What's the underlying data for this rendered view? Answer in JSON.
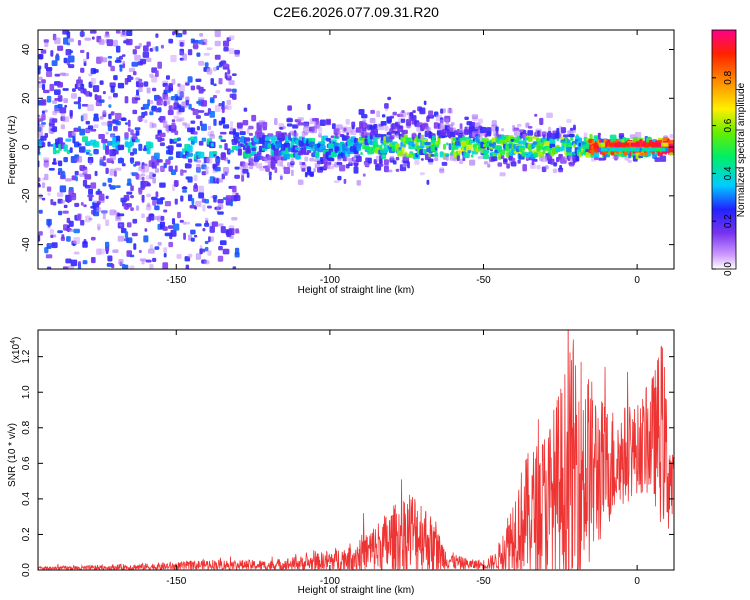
{
  "title": "C2E6.2026.077.09.31.R20",
  "chart_data": [
    {
      "type": "heatmap",
      "xlabel": "Height of straight line (km)",
      "ylabel": "Frequency (Hz)",
      "xlim": [
        -195,
        12
      ],
      "ylim": [
        -50,
        48
      ],
      "xticks": [
        -150,
        -100,
        -50,
        0
      ],
      "yticks": [
        -40,
        -20,
        0,
        20,
        40
      ],
      "colorbar": {
        "label": "Normalized spectral amplitude",
        "range": [
          0,
          1
        ],
        "ticks": [
          0.0,
          0.2,
          0.4,
          0.6,
          0.8
        ]
      }
    },
    {
      "type": "line",
      "xlabel": "Height of straight line (km)",
      "ylabel": "SNR (10 * v/v)",
      "yscale_label": "(x10",
      "yscale_exp": "4",
      "xlim": [
        -195,
        12
      ],
      "ylim": [
        0,
        1.35
      ],
      "xticks": [
        -150,
        -100,
        -50,
        0
      ],
      "yticks": [
        0.0,
        0.2,
        0.4,
        0.6,
        0.8,
        1.0,
        1.2
      ],
      "color": "#ee3333",
      "envelope": {
        "x": [
          -195,
          -180,
          -165,
          -150,
          -140,
          -120,
          -105,
          -95,
          -88,
          -82,
          -78,
          -74,
          -70,
          -66,
          -62,
          -58,
          -54,
          -50,
          -46,
          -43,
          -40,
          -36,
          -32,
          -28,
          -25,
          -22,
          -20,
          -17,
          -14,
          -10,
          -6,
          -3,
          0,
          3,
          6,
          8,
          9,
          10,
          11,
          12
        ],
        "y": [
          0.01,
          0.01,
          0.015,
          0.02,
          0.03,
          0.025,
          0.04,
          0.06,
          0.1,
          0.14,
          0.17,
          0.22,
          0.2,
          0.12,
          0.06,
          0.04,
          0.03,
          0.03,
          0.05,
          0.12,
          0.22,
          0.3,
          0.34,
          0.38,
          0.45,
          0.52,
          0.6,
          0.58,
          0.55,
          0.58,
          0.62,
          0.66,
          0.68,
          0.72,
          0.75,
          0.78,
          0.7,
          0.55,
          0.5,
          0.4
        ],
        "amp": [
          0.01,
          0.015,
          0.02,
          0.025,
          0.03,
          0.03,
          0.05,
          0.08,
          0.12,
          0.18,
          0.22,
          0.25,
          0.22,
          0.15,
          0.06,
          0.04,
          0.03,
          0.03,
          0.05,
          0.15,
          0.25,
          0.35,
          0.4,
          0.5,
          0.6,
          0.72,
          0.75,
          0.6,
          0.5,
          0.35,
          0.3,
          0.28,
          0.25,
          0.3,
          0.4,
          0.55,
          0.45,
          0.35,
          0.3,
          0.2
        ]
      }
    }
  ]
}
